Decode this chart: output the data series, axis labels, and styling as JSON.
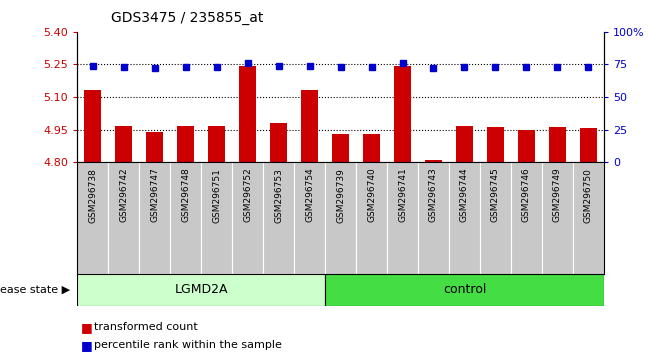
{
  "title": "GDS3475 / 235855_at",
  "samples": [
    "GSM296738",
    "GSM296742",
    "GSM296747",
    "GSM296748",
    "GSM296751",
    "GSM296752",
    "GSM296753",
    "GSM296754",
    "GSM296739",
    "GSM296740",
    "GSM296741",
    "GSM296743",
    "GSM296744",
    "GSM296745",
    "GSM296746",
    "GSM296749",
    "GSM296750"
  ],
  "bar_values": [
    5.13,
    4.965,
    4.94,
    4.965,
    4.967,
    5.243,
    4.982,
    5.13,
    4.928,
    4.929,
    5.243,
    4.808,
    4.967,
    4.961,
    4.95,
    4.961,
    4.957
  ],
  "percentile_values": [
    74,
    73,
    72,
    73,
    73,
    76,
    74,
    74,
    73,
    73,
    76,
    72,
    73,
    73,
    73,
    73,
    73
  ],
  "lgmd2a_count": 8,
  "lgmd2a_color": "#ccffcc",
  "control_color": "#44dd44",
  "ylim": [
    4.8,
    5.4
  ],
  "yticks_left": [
    4.8,
    4.95,
    5.1,
    5.25,
    5.4
  ],
  "yticks_right": [
    0,
    25,
    50,
    75,
    100
  ],
  "hlines": [
    4.95,
    5.1,
    5.25
  ],
  "bar_color": "#cc0000",
  "percentile_color": "#0000cc",
  "bar_bottom": 4.8,
  "legend_bar": "transformed count",
  "legend_pct": "percentile rank within the sample",
  "disease_state_label": "disease state ▶",
  "xtick_bg_color": "#c8c8c8",
  "left_color": "#cc0000",
  "right_color": "#0000cc"
}
